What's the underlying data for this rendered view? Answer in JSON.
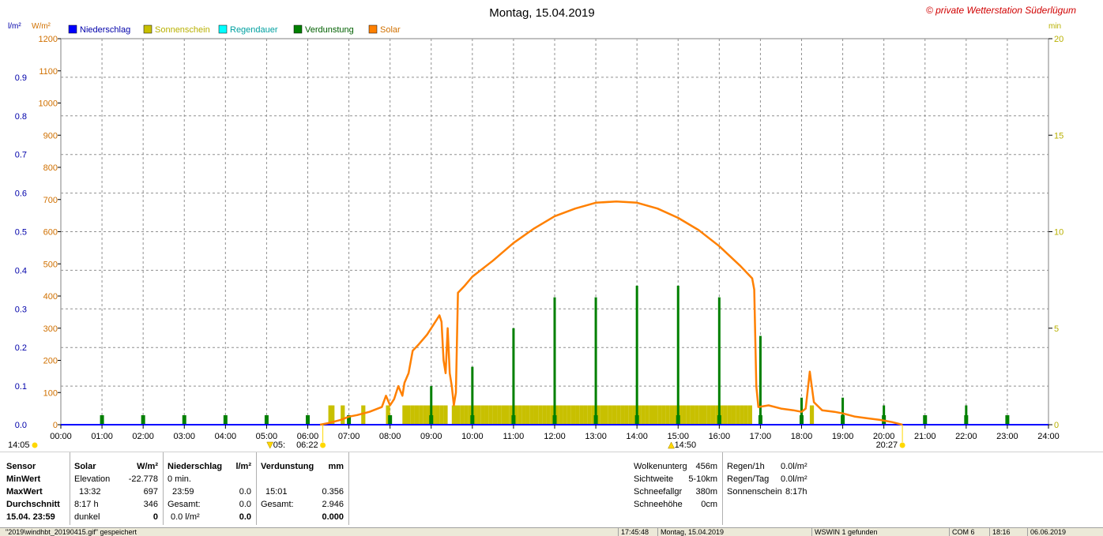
{
  "chart_data": {
    "type": "line",
    "title": "Montag, 15.04.2019",
    "watermark": "© private Wetterstation Süderlügum",
    "unit_left_inner": "l/m²",
    "unit_left_outer": "W/m²",
    "unit_right": "min",
    "legend": [
      {
        "name": "Niederschlag",
        "color": "#0000ff"
      },
      {
        "name": "Sonnenschein",
        "color": "#c8c000"
      },
      {
        "name": "Regendauer",
        "color": "#00ffff"
      },
      {
        "name": "Verdunstung",
        "color": "#008000"
      },
      {
        "name": "Solar",
        "color": "#ff8000"
      }
    ],
    "colors": {
      "niederschlag": "#0000ff",
      "sonnenschein": "#c8c000",
      "verdunstung": "#008000",
      "solar": "#ff8000",
      "axis_left_inner": "#0000aa",
      "axis_left_outer": "#d07000",
      "axis_right": "#b8b000"
    },
    "x_range": [
      0,
      24
    ],
    "x_ticks": [
      "00:00",
      "01:00",
      "02:00",
      "03:00",
      "04:00",
      "05:00",
      "06:00",
      "07:00",
      "08:00",
      "09:00",
      "10:00",
      "11:00",
      "12:00",
      "13:00",
      "14:00",
      "15:00",
      "16:00",
      "17:00",
      "18:00",
      "19:00",
      "20:00",
      "21:00",
      "22:00",
      "23:00",
      "24:00"
    ],
    "y_solar_range": [
      0,
      1200
    ],
    "y_solar_ticks": [
      "0",
      "100",
      "200",
      "300",
      "400",
      "500",
      "600",
      "700",
      "800",
      "900",
      "1000",
      "1100",
      "1200"
    ],
    "y_rain_range": [
      0,
      1.0
    ],
    "y_rain_ticks": [
      "0.0",
      "0.1",
      "0.2",
      "0.3",
      "0.4",
      "0.5",
      "0.6",
      "0.7",
      "0.8",
      "0.9"
    ],
    "y_min_range": [
      0,
      20
    ],
    "y_min_ticks": [
      "0",
      "5",
      "10",
      "15",
      "20"
    ],
    "markers": {
      "left": "14:05",
      "moon": "05:05",
      "sunrise": "06:22",
      "zenith": "14:50",
      "sunset": "20:27",
      "sunset_label": "20:27"
    },
    "marker_labels": {
      "moon": "05:",
      "sunrise": "06:22",
      "zenith": "14:50",
      "sunset": "20:27"
    },
    "solar": [
      [
        6.3,
        0
      ],
      [
        6.5,
        5
      ],
      [
        6.8,
        15
      ],
      [
        7.0,
        25
      ],
      [
        7.2,
        30
      ],
      [
        7.5,
        40
      ],
      [
        7.8,
        55
      ],
      [
        7.9,
        90
      ],
      [
        8.0,
        60
      ],
      [
        8.1,
        80
      ],
      [
        8.2,
        120
      ],
      [
        8.3,
        90
      ],
      [
        8.35,
        130
      ],
      [
        8.45,
        160
      ],
      [
        8.55,
        230
      ],
      [
        8.7,
        250
      ],
      [
        8.9,
        280
      ],
      [
        9.05,
        310
      ],
      [
        9.2,
        340
      ],
      [
        9.25,
        320
      ],
      [
        9.3,
        200
      ],
      [
        9.35,
        160
      ],
      [
        9.4,
        300
      ],
      [
        9.45,
        160
      ],
      [
        9.5,
        120
      ],
      [
        9.55,
        60
      ],
      [
        9.6,
        100
      ],
      [
        9.65,
        410
      ],
      [
        9.8,
        430
      ],
      [
        10.0,
        460
      ],
      [
        10.5,
        510
      ],
      [
        11.0,
        565
      ],
      [
        11.5,
        610
      ],
      [
        12.0,
        648
      ],
      [
        12.5,
        672
      ],
      [
        13.0,
        690
      ],
      [
        13.5,
        694
      ],
      [
        14.0,
        690
      ],
      [
        14.5,
        672
      ],
      [
        15.0,
        643
      ],
      [
        15.5,
        605
      ],
      [
        16.0,
        555
      ],
      [
        16.5,
        495
      ],
      [
        16.8,
        455
      ],
      [
        16.85,
        420
      ],
      [
        16.9,
        120
      ],
      [
        16.95,
        55
      ],
      [
        17.2,
        60
      ],
      [
        17.5,
        50
      ],
      [
        17.8,
        45
      ],
      [
        18.0,
        40
      ],
      [
        18.1,
        50
      ],
      [
        18.2,
        165
      ],
      [
        18.3,
        70
      ],
      [
        18.5,
        45
      ],
      [
        18.8,
        40
      ],
      [
        19.0,
        35
      ],
      [
        19.3,
        25
      ],
      [
        19.6,
        20
      ],
      [
        19.9,
        15
      ],
      [
        20.2,
        8
      ],
      [
        20.45,
        0
      ]
    ],
    "sunshine_minutes": [
      [
        6.55,
        1
      ],
      [
        6.6,
        1
      ],
      [
        6.85,
        1
      ],
      [
        7.35,
        1
      ],
      [
        7.95,
        1
      ],
      [
        8.35,
        1
      ],
      [
        8.45,
        1
      ],
      [
        8.55,
        1
      ],
      [
        8.65,
        1
      ],
      [
        8.75,
        1
      ],
      [
        8.85,
        1
      ],
      [
        8.95,
        1
      ],
      [
        9.05,
        1
      ],
      [
        9.15,
        1
      ],
      [
        9.25,
        1
      ],
      [
        9.35,
        1
      ],
      [
        9.55,
        1
      ],
      [
        9.65,
        1
      ],
      [
        9.75,
        1
      ],
      [
        9.85,
        1
      ],
      [
        9.95,
        1
      ],
      [
        10.05,
        1
      ],
      [
        10.15,
        1
      ],
      [
        10.25,
        1
      ],
      [
        10.35,
        1
      ],
      [
        10.45,
        1
      ],
      [
        10.55,
        1
      ],
      [
        10.65,
        1
      ],
      [
        10.75,
        1
      ],
      [
        10.85,
        1
      ],
      [
        10.95,
        1
      ],
      [
        11.05,
        1
      ],
      [
        11.15,
        1
      ],
      [
        11.25,
        1
      ],
      [
        11.35,
        1
      ],
      [
        11.45,
        1
      ],
      [
        11.55,
        1
      ],
      [
        11.65,
        1
      ],
      [
        11.75,
        1
      ],
      [
        11.85,
        1
      ],
      [
        11.95,
        1
      ],
      [
        12.05,
        1
      ],
      [
        12.15,
        1
      ],
      [
        12.25,
        1
      ],
      [
        12.35,
        1
      ],
      [
        12.45,
        1
      ],
      [
        12.55,
        1
      ],
      [
        12.65,
        1
      ],
      [
        12.75,
        1
      ],
      [
        12.85,
        1
      ],
      [
        12.95,
        1
      ],
      [
        13.05,
        1
      ],
      [
        13.15,
        1
      ],
      [
        13.25,
        1
      ],
      [
        13.35,
        1
      ],
      [
        13.45,
        1
      ],
      [
        13.55,
        1
      ],
      [
        13.65,
        1
      ],
      [
        13.75,
        1
      ],
      [
        13.85,
        1
      ],
      [
        13.95,
        1
      ],
      [
        14.05,
        1
      ],
      [
        14.15,
        1
      ],
      [
        14.25,
        1
      ],
      [
        14.35,
        1
      ],
      [
        14.45,
        1
      ],
      [
        14.55,
        1
      ],
      [
        14.65,
        1
      ],
      [
        14.75,
        1
      ],
      [
        14.85,
        1
      ],
      [
        14.95,
        1
      ],
      [
        15.05,
        1
      ],
      [
        15.15,
        1
      ],
      [
        15.25,
        1
      ],
      [
        15.35,
        1
      ],
      [
        15.45,
        1
      ],
      [
        15.55,
        1
      ],
      [
        15.65,
        1
      ],
      [
        15.75,
        1
      ],
      [
        15.85,
        1
      ],
      [
        15.95,
        1
      ],
      [
        16.05,
        1
      ],
      [
        16.15,
        1
      ],
      [
        16.25,
        1
      ],
      [
        16.35,
        1
      ],
      [
        16.45,
        1
      ],
      [
        16.55,
        1
      ],
      [
        16.65,
        1
      ],
      [
        16.75,
        1
      ],
      [
        18.25,
        1
      ]
    ],
    "evaporation": [
      [
        1,
        0.02
      ],
      [
        2,
        0.02
      ],
      [
        3,
        0.02
      ],
      [
        4,
        0.02
      ],
      [
        5,
        0.02
      ],
      [
        6,
        0.02
      ],
      [
        7,
        0.02
      ],
      [
        8,
        0.02
      ],
      [
        9,
        0.1
      ],
      [
        10,
        0.15
      ],
      [
        11,
        0.25
      ],
      [
        12,
        0.33
      ],
      [
        13,
        0.33
      ],
      [
        14,
        0.36
      ],
      [
        15,
        0.36
      ],
      [
        16,
        0.33
      ],
      [
        17,
        0.23
      ],
      [
        18,
        0.07
      ],
      [
        19,
        0.07
      ],
      [
        20,
        0.05
      ],
      [
        21,
        0.02
      ],
      [
        22,
        0.05
      ],
      [
        23,
        0.02
      ]
    ]
  },
  "stats": {
    "sensor": {
      "header": "Sensor",
      "rows": [
        "MinWert",
        "MaxWert",
        "Durchschnitt",
        "15.04. 23:59"
      ]
    },
    "solar": {
      "header": "Solar",
      "unit": "W/m²",
      "rows": [
        [
          "Elevation",
          "-22.778"
        ],
        [
          "13:32",
          "697"
        ],
        [
          "8:17 h",
          "346"
        ],
        [
          "dunkel",
          "0"
        ]
      ]
    },
    "niederschlag": {
      "header": "Niederschlag",
      "unit": "l/m²",
      "rows": [
        [
          "0 min.",
          ""
        ],
        [
          "23:59",
          "0.0"
        ],
        [
          "Gesamt:",
          "0.0"
        ],
        [
          "0.0 l/m²",
          "0.0"
        ]
      ]
    },
    "verdunstung": {
      "header": "Verdunstung",
      "unit": "mm",
      "rows": [
        [
          "",
          ""
        ],
        [
          "15:01",
          "0.356"
        ],
        [
          "Gesamt:",
          "2.946"
        ],
        [
          "",
          "0.000"
        ]
      ]
    },
    "weather": [
      [
        "Wolkenunterg",
        "456m"
      ],
      [
        "Sichtweite",
        "5-10km"
      ],
      [
        "Schneefallgr",
        "380m"
      ],
      [
        "Schneehöhe",
        "0cm"
      ]
    ],
    "rain": [
      [
        "Regen/1h",
        "0.0l/m²"
      ],
      [
        "Regen/Tag",
        "0.0l/m²"
      ],
      [
        "Sonnenschein",
        "8:17h"
      ]
    ]
  },
  "statusbar": {
    "file": "\"2019\\windhbt_20190415.gif\" gespeichert",
    "time": "17:45:48",
    "date": "Montag, 15.04.2019",
    "wswin": "WSWIN 1 gefunden",
    "com": "COM 6",
    "clock": "18:16",
    "day": "06.06.2019"
  }
}
